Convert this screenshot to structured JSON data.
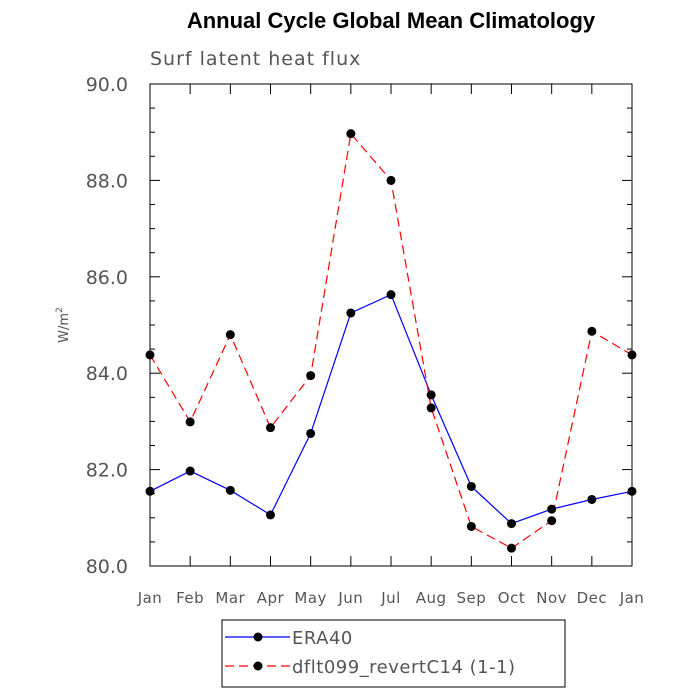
{
  "chart_data": {
    "type": "line",
    "title": "Annual Cycle Global Mean Climatology",
    "subtitle": "Surf latent heat flux",
    "xlabel": "",
    "ylabel": "W/m",
    "ylabel_superscript": "2",
    "categories": [
      "Jan",
      "Feb",
      "Mar",
      "Apr",
      "May",
      "Jun",
      "Jul",
      "Aug",
      "Sep",
      "Oct",
      "Nov",
      "Dec",
      "Jan"
    ],
    "ylim": [
      80.0,
      90.0
    ],
    "yticks": [
      "80.0",
      "82.0",
      "84.0",
      "86.0",
      "88.0",
      "90.0"
    ],
    "grid": false,
    "legend_placement": "bottom",
    "series": [
      {
        "name": "ERA40",
        "color": "#0000ff",
        "dash": "solid",
        "values": [
          81.55,
          81.97,
          81.57,
          81.06,
          82.75,
          85.25,
          85.63,
          83.55,
          81.65,
          80.88,
          81.18,
          81.38,
          81.55
        ]
      },
      {
        "name": "dflt099_revertC14 (1-1)",
        "color": "#ff0000",
        "dash": "dashed",
        "values": [
          84.38,
          82.99,
          84.8,
          82.87,
          83.95,
          88.97,
          88.0,
          83.28,
          80.82,
          80.37,
          80.94,
          84.87,
          84.38
        ]
      }
    ]
  }
}
